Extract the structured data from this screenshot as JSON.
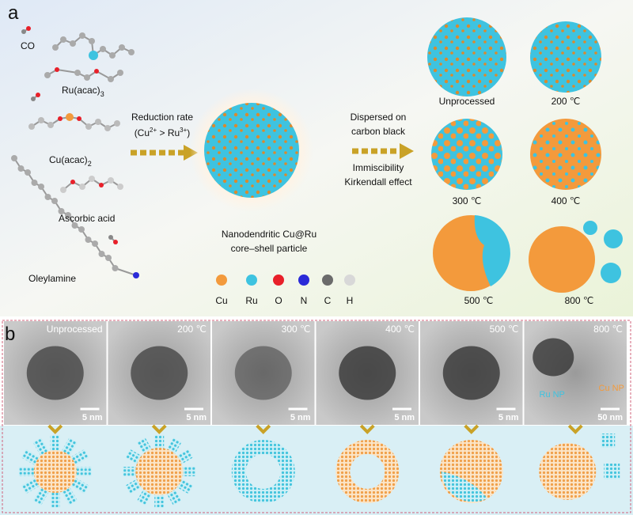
{
  "panel_a": {
    "label": "a",
    "molecules": {
      "co": "CO",
      "ru_acac": {
        "base": "Ru(acac)",
        "sub": "3"
      },
      "cu_acac": {
        "base": "Cu(acac)",
        "sub": "2"
      },
      "ascorbic": "Ascorbic acid",
      "oleylamine": "Oleylamine"
    },
    "step1": {
      "line1": "Reduction rate",
      "line2": [
        "(Cu",
        "2+",
        " > Ru",
        "3+",
        ")"
      ]
    },
    "product": [
      "Nanodendritic Cu@Ru",
      "core–shell particle"
    ],
    "step2": {
      "above": [
        "Dispersed on",
        "carbon black"
      ],
      "below": [
        "Immiscibility",
        "Kirkendall effect"
      ]
    },
    "annealing": [
      "Unprocessed",
      "200 ℃",
      "300 ℃",
      "400 ℃",
      "500 ℃",
      "800 ℃"
    ],
    "legend": [
      {
        "label": "Cu",
        "color": "#f39a3c"
      },
      {
        "label": "Ru",
        "color": "#3ec3e0"
      },
      {
        "label": "O",
        "color": "#e8202a"
      },
      {
        "label": "N",
        "color": "#2a2ad8"
      },
      {
        "label": "C",
        "color": "#6b6b6b"
      },
      {
        "label": "H",
        "color": "#d8d8d8"
      }
    ]
  },
  "panel_b": {
    "label": "b",
    "tem": [
      {
        "label": "Unprocessed",
        "scale": "5 nm"
      },
      {
        "label": "200 ℃",
        "scale": "5 nm"
      },
      {
        "label": "300 ℃",
        "scale": "5 nm"
      },
      {
        "label": "400 ℃",
        "scale": "5 nm"
      },
      {
        "label": "500 ℃",
        "scale": "5 nm"
      },
      {
        "label": "800 ℃",
        "scale": "50 nm"
      }
    ],
    "annotations": [
      "Cu NP",
      "Ru NP"
    ]
  }
}
